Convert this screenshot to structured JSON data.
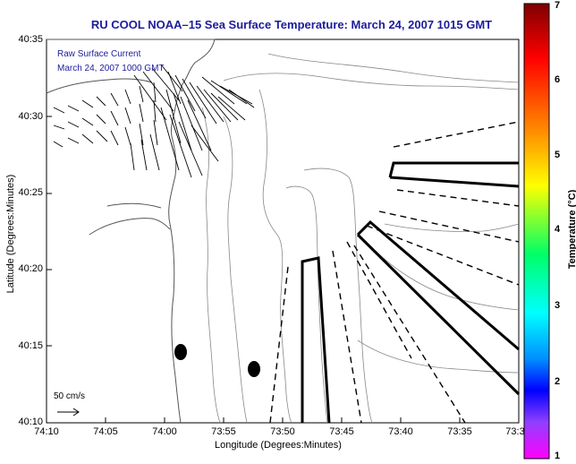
{
  "title": "RU COOL  NOAA–15  Sea Surface Temperature:  March 24, 2007 1015 GMT",
  "legend": {
    "line1": "Raw Surface Current",
    "line2": "March 24, 2007 1000 GMT"
  },
  "scale_label": "50 cm/s",
  "axes": {
    "xlabel": "Longitude (Degrees:Minutes)",
    "ylabel": "Latitude (Degrees:Minutes)",
    "xticks": [
      "74:10",
      "74:05",
      "74:00",
      "73:55",
      "73:50",
      "73:45",
      "73:40",
      "73:35",
      "73:3"
    ],
    "yticks": [
      "40:35",
      "40:30",
      "40:25",
      "40:20",
      "40:15",
      "40:10"
    ]
  },
  "colorbar": {
    "title": "Temperature (°C)",
    "ticks": [
      "7",
      "6",
      "5",
      "4",
      "3",
      "2",
      "1"
    ],
    "colors": [
      "#8b0000",
      "#ff0000",
      "#ff8c00",
      "#ffff00",
      "#00ff00",
      "#00ffff",
      "#0080ff",
      "#0000ff",
      "#8000ff",
      "#ff00ff"
    ]
  }
}
